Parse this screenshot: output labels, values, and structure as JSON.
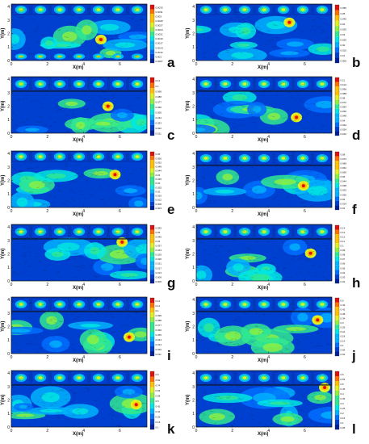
{
  "figure": {
    "axis_labels": {
      "x": "X(m)",
      "y": "Y(m)"
    },
    "x_ticks": [
      "0",
      "2",
      "4",
      "6"
    ],
    "y_ticks": [
      "0",
      "1",
      "2",
      "3",
      "4"
    ],
    "colormap": [
      "#00209a",
      "#0040d0",
      "#0070ff",
      "#00b4ff",
      "#00e8e0",
      "#30e890",
      "#90f040",
      "#e0f020",
      "#ffc000",
      "#ff7000",
      "#e01010"
    ],
    "panels": [
      {
        "letter": "a",
        "top_cells": 7,
        "bottom_cells": 7,
        "divider": false,
        "colorbar": [
          "0.0033",
          "0.0031",
          "0.003",
          "0.0029",
          "0.0027",
          "0.0024",
          "0.0021",
          "0.0019",
          "0.0017",
          "0.0014",
          "0.0012",
          "0.001",
          "0.0007"
        ]
      },
      {
        "letter": "b",
        "top_cells": 7,
        "bottom_cells": 0,
        "divider": false,
        "colorbar": [
          "0.055",
          "0.05",
          "0.045",
          "0.04",
          "0.035",
          "0.03",
          "0.025",
          "0.02",
          "0.015",
          "0.01",
          "0.005"
        ]
      },
      {
        "letter": "c",
        "top_cells": 7,
        "bottom_cells": 0,
        "divider": true,
        "colorbar": [
          "0.11",
          "0.1",
          "0.099",
          "0.088",
          "0.077",
          "0.066",
          "0.055",
          "0.044",
          "0.033",
          "0.022",
          "0.011"
        ]
      },
      {
        "letter": "d",
        "top_cells": 7,
        "bottom_cells": 0,
        "divider": true,
        "colorbar": [
          "0.11",
          "0.104",
          "0.096",
          "0.088",
          "0.08",
          "0.072",
          "0.064",
          "0.056",
          "0.048",
          "0.04",
          "0.032",
          "0.024",
          "0.016"
        ]
      },
      {
        "letter": "e",
        "top_cells": 7,
        "bottom_cells": 0,
        "divider": false,
        "colorbar": [
          "0.06",
          "0.056",
          "0.052",
          "0.048",
          "0.044",
          "0.04",
          "0.035",
          "0.03",
          "0.025",
          "0.02",
          "0.016",
          "0.012",
          "0.008",
          "0.004"
        ]
      },
      {
        "letter": "f",
        "top_cells": 7,
        "bottom_cells": 0,
        "divider": true,
        "colorbar": [
          "0.08",
          "0.074",
          "0.068",
          "0.062",
          "0.056",
          "0.05",
          "0.044",
          "0.038",
          "0.032",
          "0.026",
          "0.02",
          "0.014",
          "0.01"
        ]
      },
      {
        "letter": "g",
        "top_cells": 7,
        "bottom_cells": 0,
        "divider": true,
        "colorbar": [
          "0.055",
          "0.05",
          "0.045",
          "0.04",
          "0.037",
          "0.033",
          "0.029",
          "0.025",
          "0.021",
          "0.017",
          "0.013",
          "0.009",
          "0.005"
        ]
      },
      {
        "letter": "h",
        "top_cells": 7,
        "bottom_cells": 0,
        "divider": true,
        "colorbar": [
          "0.14",
          "0.13",
          "0.12",
          "0.11",
          "0.1",
          "0.09",
          "0.08",
          "0.07",
          "0.06",
          "0.05",
          "0.04",
          "0.03",
          "0.02"
        ]
      },
      {
        "letter": "i",
        "top_cells": 7,
        "bottom_cells": 0,
        "divider": true,
        "colorbar": [
          "0.12",
          "0.11",
          "0.1",
          "0.099",
          "0.088",
          "0.077",
          "0.066",
          "0.055",
          "0.044",
          "0.033",
          "0.022",
          "0.011"
        ]
      },
      {
        "letter": "j",
        "top_cells": 7,
        "bottom_cells": 0,
        "divider": true,
        "colorbar": [
          "0.5",
          "0.46",
          "0.42",
          "0.38",
          "0.34",
          "0.3",
          "0.26",
          "0.22",
          "0.18",
          "0.14",
          "0.1",
          "0.06",
          "0.02"
        ]
      },
      {
        "letter": "k",
        "top_cells": 7,
        "bottom_cells": 0,
        "divider": true,
        "colorbar": [
          "0.9",
          "0.82",
          "0.74",
          "0.66",
          "0.58",
          "0.5",
          "0.42",
          "0.34",
          "0.26",
          "0.18",
          "0.1"
        ]
      },
      {
        "letter": "l",
        "top_cells": 7,
        "bottom_cells": 0,
        "divider": true,
        "colorbar": [
          "0.6",
          "0.55",
          "0.5",
          "0.45",
          "0.4",
          "0.35",
          "0.3",
          "0.25",
          "0.2",
          "0.15",
          "0.1",
          "0.05"
        ]
      }
    ]
  }
}
